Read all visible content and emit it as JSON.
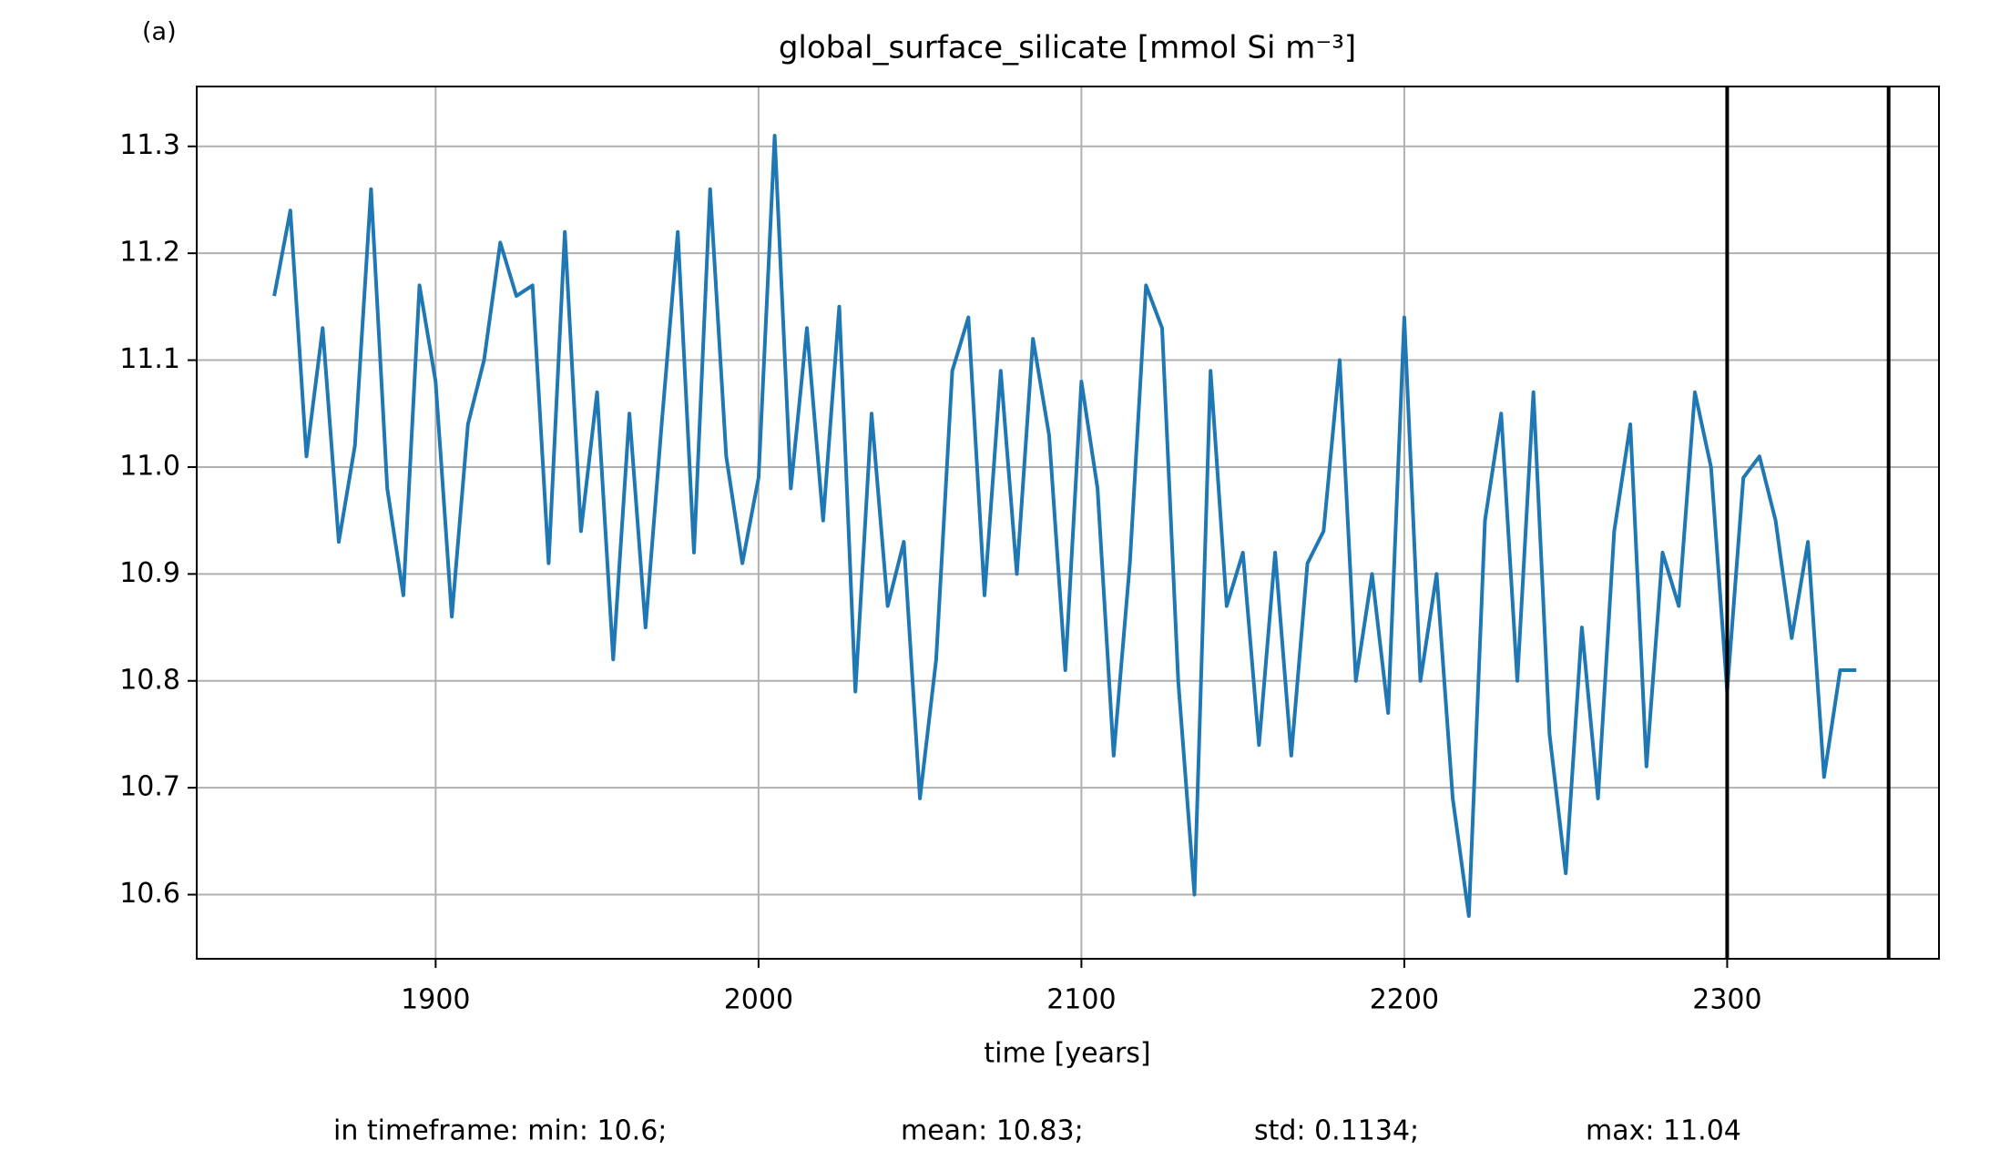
{
  "chart_data": {
    "type": "line",
    "panel_label": "(a)",
    "title": "global_surface_silicate [mmol Si m⁻³]",
    "x_label": "time [years]",
    "x": [
      1850,
      1855,
      1860,
      1865,
      1870,
      1875,
      1880,
      1885,
      1890,
      1895,
      1900,
      1905,
      1910,
      1915,
      1920,
      1925,
      1930,
      1935,
      1940,
      1945,
      1950,
      1955,
      1960,
      1965,
      1970,
      1975,
      1980,
      1985,
      1990,
      1995,
      2000,
      2005,
      2010,
      2015,
      2020,
      2025,
      2030,
      2035,
      2040,
      2045,
      2050,
      2055,
      2060,
      2065,
      2070,
      2075,
      2080,
      2085,
      2090,
      2095,
      2100,
      2105,
      2110,
      2115,
      2120,
      2125,
      2130,
      2135,
      2140,
      2145,
      2150,
      2155,
      2160,
      2165,
      2170,
      2175,
      2180,
      2185,
      2190,
      2195,
      2200,
      2205,
      2210,
      2215,
      2220,
      2225,
      2230,
      2235,
      2240,
      2245,
      2250,
      2255,
      2260,
      2265,
      2270,
      2275,
      2280,
      2285,
      2290,
      2295,
      2300,
      2305,
      2310,
      2315,
      2320,
      2325,
      2330,
      2335,
      2340
    ],
    "series": [
      {
        "color": "#1f77b4",
        "values": [
          11.16,
          11.24,
          11.01,
          11.13,
          10.93,
          11.02,
          11.26,
          10.98,
          10.88,
          11.17,
          11.08,
          10.86,
          11.04,
          11.1,
          11.21,
          11.16,
          11.17,
          10.91,
          11.22,
          10.94,
          11.07,
          10.82,
          11.05,
          10.85,
          11.04,
          11.22,
          10.92,
          11.26,
          11.01,
          10.91,
          10.99,
          11.31,
          10.98,
          11.13,
          10.95,
          11.15,
          10.79,
          11.05,
          10.87,
          10.93,
          10.69,
          10.82,
          11.09,
          11.14,
          10.88,
          11.09,
          10.9,
          11.12,
          11.03,
          10.81,
          11.08,
          10.98,
          10.73,
          10.91,
          11.17,
          11.13,
          10.8,
          10.6,
          11.09,
          10.87,
          10.92,
          10.74,
          10.92,
          10.73,
          10.91,
          10.94,
          11.1,
          10.8,
          10.9,
          10.77,
          11.14,
          10.8,
          10.9,
          10.69,
          10.58,
          10.95,
          11.05,
          10.8,
          11.07,
          10.75,
          10.62,
          10.85,
          10.69,
          10.94,
          11.04,
          10.72,
          10.92,
          10.87,
          11.07,
          11.0,
          10.79,
          10.99,
          11.01,
          10.95,
          10.84,
          10.93,
          10.71,
          10.81,
          10.81
        ]
      }
    ],
    "vlines": [
      2300,
      2350
    ],
    "vline_color": "#000000",
    "xlim": [
      1826,
      2365.6
    ],
    "xticks": [
      1900,
      2000,
      2100,
      2200,
      2300
    ],
    "ylim": [
      10.54,
      11.356
    ],
    "yticks": [
      10.6,
      10.7,
      10.8,
      10.9,
      {
        "value": 11,
        "label": "11.0"
      },
      11.1,
      11.2,
      11.3
    ],
    "grid": true,
    "stats": [
      "in timeframe: min: 10.6;",
      "mean: 10.83;",
      "std: 0.1134;",
      "max: 11.04"
    ]
  }
}
